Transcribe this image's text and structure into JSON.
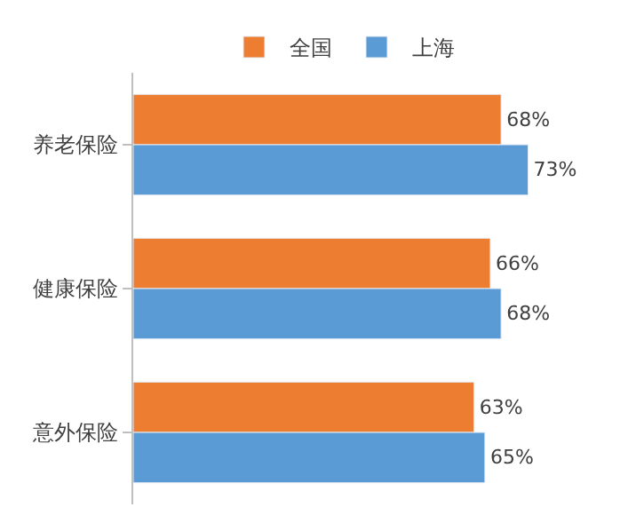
{
  "chart_data": {
    "type": "bar",
    "orientation": "horizontal",
    "categories": [
      "养老保险",
      "健康保险",
      "意外保险"
    ],
    "series": [
      {
        "name": "全国",
        "color": "#ed7d31",
        "values": [
          68,
          66,
          63
        ],
        "value_labels": [
          "68%",
          "66%",
          "63%"
        ]
      },
      {
        "name": "上海",
        "color": "#5b9bd5",
        "values": [
          73,
          68,
          65
        ],
        "value_labels": [
          "73%",
          "68%",
          "65%"
        ]
      }
    ],
    "tick_labels": "y",
    "legend": "top"
  }
}
